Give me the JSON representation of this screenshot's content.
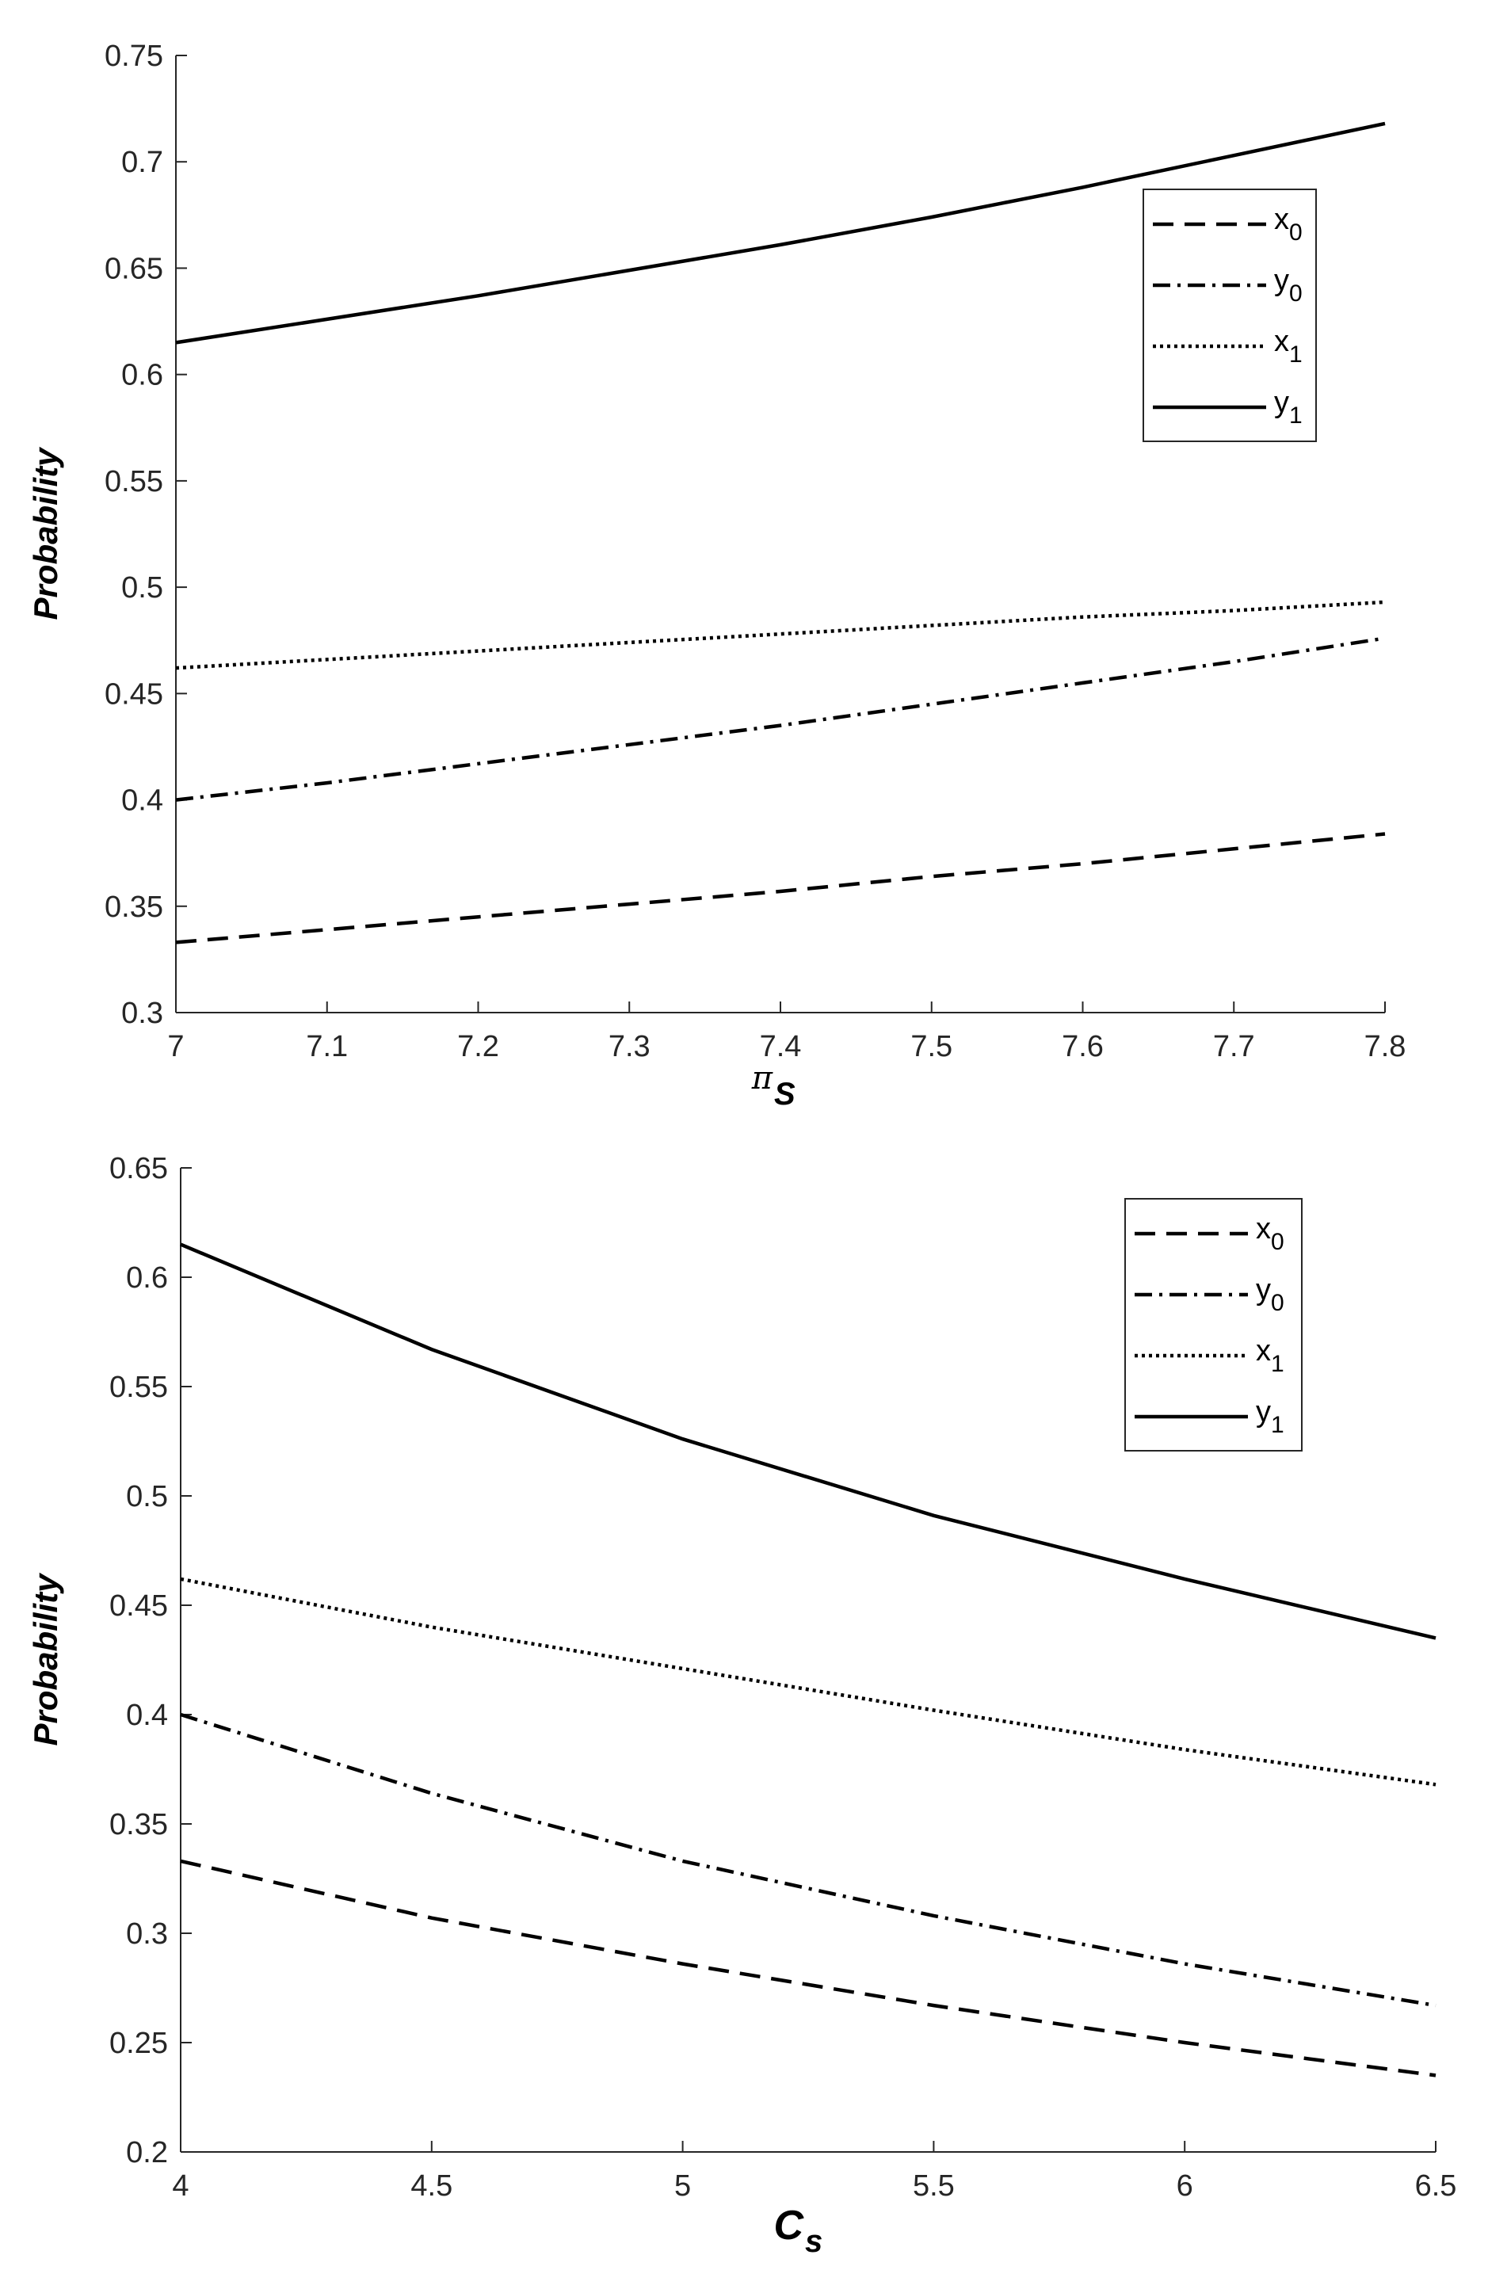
{
  "chart_data": [
    {
      "type": "line",
      "ylabel": "Probability",
      "xlabel": {
        "symbol": "π",
        "subscript": "S"
      },
      "xlim": [
        7,
        7.8
      ],
      "ylim": [
        0.3,
        0.75
      ],
      "xticks": [
        "7",
        "7.1",
        "7.2",
        "7.3",
        "7.4",
        "7.5",
        "7.6",
        "7.7",
        "7.8"
      ],
      "yticks": [
        "0.3",
        "0.35",
        "0.4",
        "0.45",
        "0.5",
        "0.55",
        "0.6",
        "0.65",
        "0.7",
        "0.75"
      ],
      "legend_position": "top-right",
      "x": [
        7.0,
        7.1,
        7.2,
        7.3,
        7.4,
        7.5,
        7.6,
        7.7,
        7.8
      ],
      "series": [
        {
          "name": "x",
          "sub": "0",
          "dash": "dashed",
          "values": [
            0.333,
            0.339,
            0.345,
            0.351,
            0.357,
            0.364,
            0.37,
            0.377,
            0.384
          ]
        },
        {
          "name": "y",
          "sub": "0",
          "dash": "dashdot",
          "values": [
            0.4,
            0.408,
            0.417,
            0.426,
            0.435,
            0.445,
            0.455,
            0.465,
            0.476
          ]
        },
        {
          "name": "x",
          "sub": "1",
          "dash": "dotted",
          "values": [
            0.462,
            0.466,
            0.47,
            0.474,
            0.478,
            0.482,
            0.486,
            0.489,
            0.493
          ]
        },
        {
          "name": "y",
          "sub": "1",
          "dash": "solid",
          "values": [
            0.615,
            0.626,
            0.637,
            0.649,
            0.661,
            0.674,
            0.688,
            0.703,
            0.718
          ]
        }
      ]
    },
    {
      "type": "line",
      "ylabel": "Probability",
      "xlabel": {
        "symbol": "C",
        "subscript": "s"
      },
      "xlim": [
        4,
        6.5
      ],
      "ylim": [
        0.2,
        0.65
      ],
      "xticks": [
        "4",
        "4.5",
        "5",
        "5.5",
        "6",
        "6.5"
      ],
      "yticks": [
        "0.2",
        "0.25",
        "0.3",
        "0.35",
        "0.4",
        "0.45",
        "0.5",
        "0.55",
        "0.6",
        "0.65"
      ],
      "legend_position": "top-right",
      "x": [
        4.0,
        4.5,
        5.0,
        5.5,
        6.0,
        6.5
      ],
      "series": [
        {
          "name": "x",
          "sub": "0",
          "dash": "dashed",
          "values": [
            0.333,
            0.307,
            0.286,
            0.267,
            0.25,
            0.235
          ]
        },
        {
          "name": "y",
          "sub": "0",
          "dash": "dashdot",
          "values": [
            0.4,
            0.364,
            0.333,
            0.308,
            0.286,
            0.267
          ]
        },
        {
          "name": "x",
          "sub": "1",
          "dash": "dotted",
          "values": [
            0.462,
            0.44,
            0.421,
            0.402,
            0.384,
            0.368
          ]
        },
        {
          "name": "y",
          "sub": "1",
          "dash": "solid",
          "values": [
            0.615,
            0.567,
            0.526,
            0.491,
            0.462,
            0.435
          ]
        }
      ]
    }
  ]
}
